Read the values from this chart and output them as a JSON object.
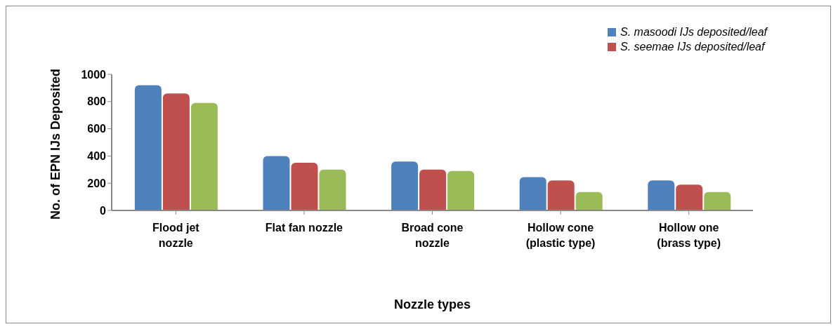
{
  "chart_data": {
    "type": "bar",
    "categories": [
      "Flood jet nozzle",
      "Flat fan nozzle",
      "Broad cone nozzle",
      "Hollow cone (plastic type)",
      "Hollow one (brass type)"
    ],
    "series": [
      {
        "name": "S. masoodi IJs deposited/leaf",
        "color": "#4f81bd",
        "values": [
          920,
          400,
          360,
          245,
          220
        ]
      },
      {
        "name": "S. seemae IJs deposited/leaf",
        "color": "#c0504d",
        "values": [
          860,
          350,
          300,
          220,
          190
        ]
      },
      {
        "color": "#9bbb59",
        "values": [
          790,
          300,
          290,
          135,
          135
        ]
      }
    ],
    "xlabel": "Nozzle types",
    "ylabel": "No. of EPN IJs Deposited",
    "ylim": [
      0,
      1000
    ],
    "yticks": [
      0,
      200,
      400,
      600,
      800,
      1000
    ],
    "grid": false,
    "legend": "top right"
  }
}
